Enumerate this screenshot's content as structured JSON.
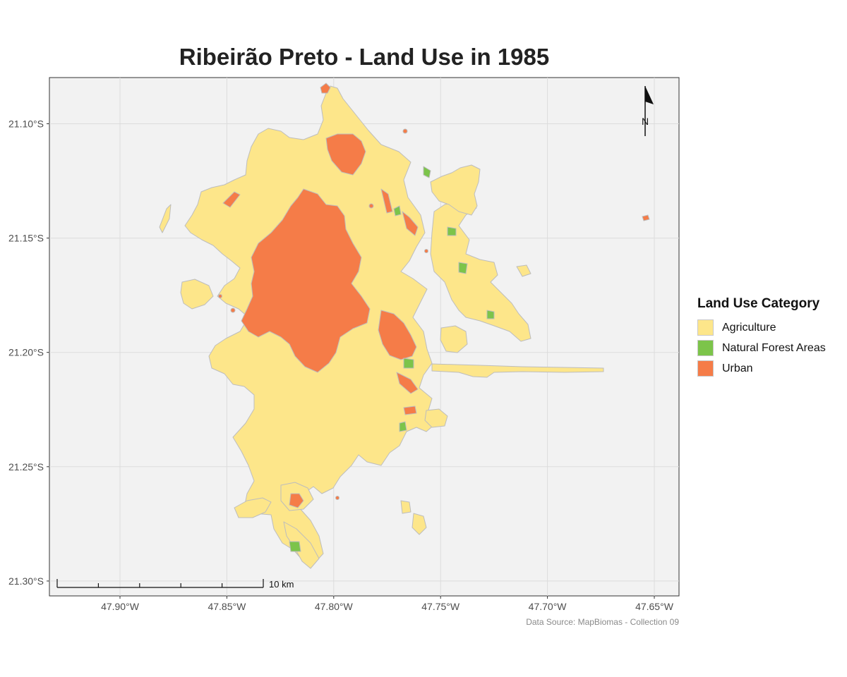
{
  "title": "Ribeirão Preto - Land Use in 1985",
  "map": {
    "y_ticks": [
      {
        "label": "21.10°S",
        "lat": -21.1
      },
      {
        "label": "21.15°S",
        "lat": -21.15
      },
      {
        "label": "21.20°S",
        "lat": -21.2
      },
      {
        "label": "21.25°S",
        "lat": -21.25
      },
      {
        "label": "21.30°S",
        "lat": -21.3
      }
    ],
    "x_ticks": [
      {
        "label": "47.90°W",
        "lon": -47.9
      },
      {
        "label": "47.85°W",
        "lon": -47.85
      },
      {
        "label": "47.80°W",
        "lon": -47.8
      },
      {
        "label": "47.75°W",
        "lon": -47.75
      },
      {
        "label": "47.70°W",
        "lon": -47.7
      },
      {
        "label": "47.65°W",
        "lon": -47.65
      }
    ],
    "north_arrow_label": "N",
    "scale_bar_label": "10 km",
    "colors": {
      "panel_background": "#f2f2f2",
      "gridline": "#dcdcdc",
      "agriculture": "#fde68a",
      "forest": "#7cc44a",
      "urban": "#f57c48"
    }
  },
  "legend": {
    "title": "Land Use Category",
    "items": [
      {
        "label": "Agriculture",
        "color": "#fde68a"
      },
      {
        "label": "Natural Forest Areas",
        "color": "#7cc44a"
      },
      {
        "label": "Urban",
        "color": "#f57c48"
      }
    ]
  },
  "source": "Data Source: MapBiomas - Collection 09"
}
